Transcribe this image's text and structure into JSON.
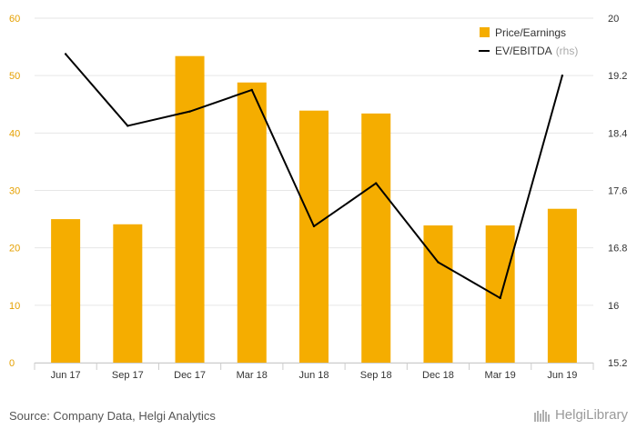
{
  "chart_data": {
    "type": "bar",
    "categories": [
      "Jun 17",
      "Sep 17",
      "Dec 17",
      "Mar 18",
      "Jun 18",
      "Sep 18",
      "Dec 18",
      "Mar 19",
      "Jun 19"
    ],
    "series": [
      {
        "name": "Price/Earnings",
        "type": "bar",
        "axis": "left",
        "color": "#f5ad00",
        "values": [
          25.0,
          24.1,
          53.4,
          48.8,
          43.9,
          43.4,
          23.9,
          23.9,
          26.8
        ]
      },
      {
        "name": "EV/EBITDA",
        "type": "line",
        "axis": "right",
        "color": "#000000",
        "values": [
          19.5,
          18.5,
          18.7,
          19.0,
          17.1,
          17.7,
          16.6,
          16.1,
          19.2
        ]
      }
    ],
    "y_left": {
      "min": 0,
      "max": 60,
      "ticks": [
        0,
        10,
        20,
        30,
        40,
        50,
        60
      ]
    },
    "y_right": {
      "min": 15.2,
      "max": 20,
      "ticks": [
        "15.2",
        "16",
        "16.8",
        "17.6",
        "18.4",
        "19.2",
        "20"
      ]
    },
    "legend": {
      "position": "top-right",
      "items": [
        {
          "label": "Price/Earnings",
          "suffix": ""
        },
        {
          "label": "EV/EBITDA",
          "suffix": "(rhs)"
        }
      ]
    },
    "grid": true,
    "colors": {
      "bar": "#f5ad00",
      "line": "#000000",
      "left_tick": "#e5a000",
      "right_tick": "#333333",
      "grid": "#e6e6e6"
    }
  },
  "footer": {
    "source": "Source: Company Data, Helgi Analytics",
    "brand": "HelgiLibrary"
  }
}
